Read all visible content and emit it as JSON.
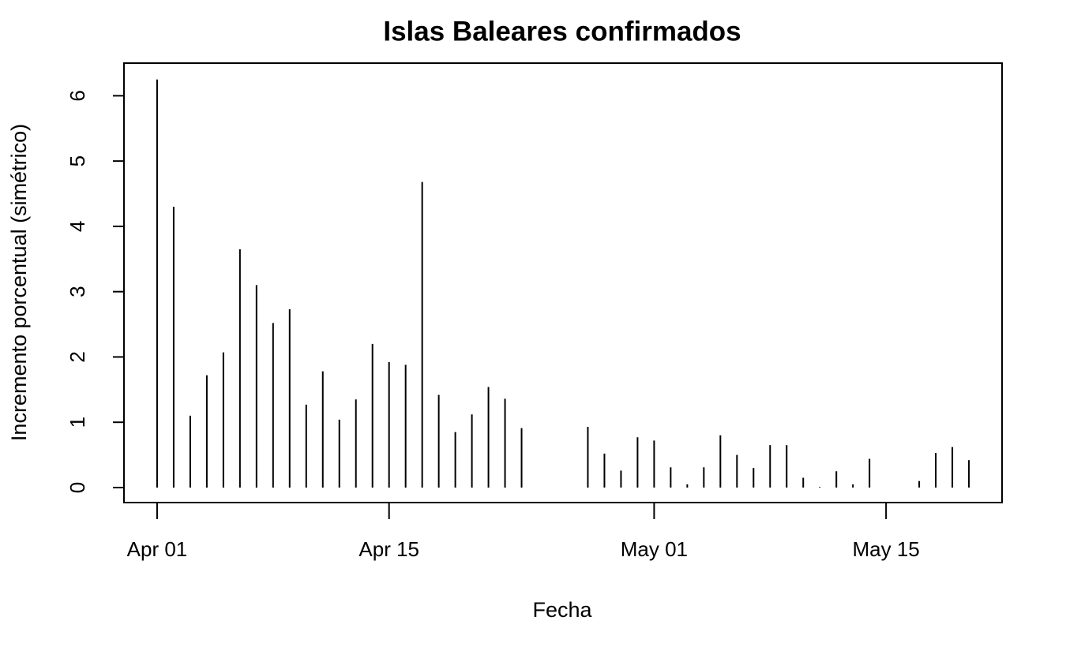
{
  "chart_data": {
    "type": "line",
    "line_style": "h",
    "title": "Islas Baleares confirmados",
    "x_label": "Fecha",
    "y_label": "Incremento porcentual (simétrico)",
    "color": "#000000",
    "x": [
      "04-01",
      "04-02",
      "04-03",
      "04-04",
      "04-05",
      "04-06",
      "04-07",
      "04-08",
      "04-09",
      "04-10",
      "04-11",
      "04-12",
      "04-13",
      "04-14",
      "04-15",
      "04-16",
      "04-17",
      "04-18",
      "04-19",
      "04-20",
      "04-21",
      "04-22",
      "04-23",
      "04-27",
      "04-28",
      "04-29",
      "04-30",
      "05-01",
      "05-02",
      "05-03",
      "05-04",
      "05-05",
      "05-06",
      "05-07",
      "05-08",
      "05-09",
      "05-10",
      "05-11",
      "05-12",
      "05-13",
      "05-14",
      "05-17",
      "05-18",
      "05-19",
      "05-20"
    ],
    "values": [
      6.25,
      4.3,
      1.1,
      1.72,
      2.07,
      3.65,
      3.1,
      2.52,
      2.73,
      1.27,
      1.78,
      1.04,
      1.35,
      2.2,
      1.92,
      1.88,
      4.68,
      1.42,
      0.85,
      1.12,
      1.54,
      1.36,
      0.91,
      0.93,
      0.52,
      0.26,
      0.77,
      0.72,
      0.31,
      0.05,
      0.31,
      0.8,
      0.5,
      0.3,
      0.65,
      0.65,
      0.15,
      0.01,
      0.25,
      0.05,
      0.44,
      0.1,
      0.53,
      0.62,
      0.42
    ],
    "xlim": [
      "03-30",
      "05-22"
    ],
    "xticks": [
      {
        "value": "04-01",
        "label": "Apr 01"
      },
      {
        "value": "04-15",
        "label": "Apr 15"
      },
      {
        "value": "05-01",
        "label": "May 01"
      },
      {
        "value": "05-15",
        "label": "May 15"
      }
    ],
    "ylim": [
      -0.23,
      6.5
    ],
    "yticks": [
      0,
      1,
      2,
      3,
      4,
      5,
      6
    ]
  }
}
